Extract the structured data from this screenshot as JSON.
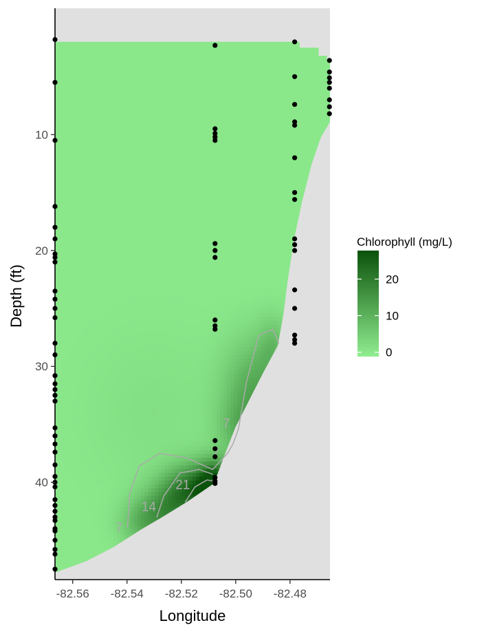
{
  "chart_data": {
    "type": "heatmap",
    "xlabel": "Longitude",
    "ylabel": "Depth (ft)",
    "x_ticks": [
      "-82.56",
      "-82.54",
      "-82.52",
      "-82.50",
      "-82.48"
    ],
    "x_tick_values": [
      -82.56,
      -82.54,
      -82.52,
      -82.5,
      -82.48
    ],
    "y_ticks": [
      "10",
      "20",
      "30",
      "40"
    ],
    "y_tick_values": [
      10,
      20,
      30,
      40
    ],
    "xlim": [
      -82.5665,
      -82.4653
    ],
    "ylim": [
      48.4,
      -0.9
    ],
    "y_reversed": true,
    "grid": false,
    "legend": {
      "title": "Chlorophyll (mg/L)",
      "position": "right",
      "labels": [
        "20",
        "10",
        "0"
      ],
      "label_values": [
        20,
        10,
        0
      ],
      "range": [
        -1.2,
        27.8
      ],
      "color_low": "#90ee90",
      "color_high": "#0b520b"
    },
    "background_color": "#e0e0e0",
    "contour_color": "#aaaaaa",
    "point_color": "#000000",
    "bottom_profile": [
      {
        "x": -82.5665,
        "y": 47.8
      },
      {
        "x": -82.555,
        "y": 46.8
      },
      {
        "x": -82.545,
        "y": 45.6
      },
      {
        "x": -82.535,
        "y": 44.1
      },
      {
        "x": -82.527,
        "y": 43.0
      },
      {
        "x": -82.518,
        "y": 41.7
      },
      {
        "x": -82.508,
        "y": 40.1
      },
      {
        "x": -82.504,
        "y": 37.6
      },
      {
        "x": -82.5,
        "y": 35.2
      },
      {
        "x": -82.495,
        "y": 32.9
      },
      {
        "x": -82.49,
        "y": 30.6
      },
      {
        "x": -82.4845,
        "y": 28.2
      },
      {
        "x": -82.4825,
        "y": 25.6
      },
      {
        "x": -82.4808,
        "y": 22.5
      },
      {
        "x": -82.4785,
        "y": 19.0
      },
      {
        "x": -82.4755,
        "y": 15.7
      },
      {
        "x": -82.472,
        "y": 12.5
      },
      {
        "x": -82.4686,
        "y": 10.2
      },
      {
        "x": -82.4653,
        "y": 8.9
      }
    ],
    "top_edge": [
      {
        "x": -82.5665,
        "y": 2.0
      },
      {
        "x": -82.4765,
        "y": 2.0
      },
      {
        "x": -82.4765,
        "y": 2.5
      },
      {
        "x": -82.4695,
        "y": 2.5
      },
      {
        "x": -82.4695,
        "y": 3.2
      },
      {
        "x": -82.4665,
        "y": 3.2
      },
      {
        "x": -82.4665,
        "y": 3.7
      },
      {
        "x": -82.4653,
        "y": 3.7
      }
    ],
    "hotspots": [
      {
        "x": -82.5075,
        "y": 40.2,
        "value": 26,
        "sx": 0.0045,
        "sy": 1.4
      },
      {
        "x": -82.516,
        "y": 40.6,
        "value": 19,
        "sx": 0.007,
        "sy": 1.5
      },
      {
        "x": -82.525,
        "y": 42.4,
        "value": 13,
        "sx": 0.007,
        "sy": 1.6
      },
      {
        "x": -82.534,
        "y": 43.6,
        "value": 8,
        "sx": 0.006,
        "sy": 1.4
      },
      {
        "x": -82.493,
        "y": 32.5,
        "value": 12,
        "sx": 0.008,
        "sy": 3.2
      },
      {
        "x": -82.486,
        "y": 28.3,
        "value": 6,
        "sx": 0.004,
        "sy": 1.8
      },
      {
        "x": -82.498,
        "y": 35.5,
        "value": 6,
        "sx": 0.006,
        "sy": 1.6
      },
      {
        "x": -82.53,
        "y": 34.0,
        "value": 1.5,
        "sx": 0.018,
        "sy": 5.0
      }
    ],
    "contours": [
      {
        "level": 7,
        "points": [
          {
            "x": -82.5398,
            "y": 43.9
          },
          {
            "x": -82.539,
            "y": 41.0
          },
          {
            "x": -82.5355,
            "y": 38.6
          },
          {
            "x": -82.528,
            "y": 37.5
          },
          {
            "x": -82.518,
            "y": 37.9
          },
          {
            "x": -82.5085,
            "y": 38.9
          },
          {
            "x": -82.503,
            "y": 37.5
          },
          {
            "x": -82.501,
            "y": 36.7
          },
          {
            "x": -82.499,
            "y": 35.4
          },
          {
            "x": -82.496,
            "y": 31.3
          },
          {
            "x": -82.4915,
            "y": 27.3
          },
          {
            "x": -82.4862,
            "y": 26.8
          },
          {
            "x": -82.4842,
            "y": 28.0
          }
        ]
      },
      {
        "level": 14,
        "points": [
          {
            "x": -82.529,
            "y": 43.0
          },
          {
            "x": -82.5265,
            "y": 41.2
          },
          {
            "x": -82.5205,
            "y": 39.2
          },
          {
            "x": -82.5135,
            "y": 38.9
          },
          {
            "x": -82.5085,
            "y": 39.3
          }
        ]
      },
      {
        "level": 21,
        "points": [
          {
            "x": -82.5185,
            "y": 41.7
          },
          {
            "x": -82.515,
            "y": 40.4
          },
          {
            "x": -82.5105,
            "y": 39.8
          },
          {
            "x": -82.5082,
            "y": 39.9
          }
        ]
      }
    ],
    "contour_labels": [
      {
        "text": "7",
        "x": -82.543,
        "y": 44.0
      },
      {
        "text": "7",
        "x": -82.5075,
        "y": 37.6
      },
      {
        "text": "7",
        "x": -82.5035,
        "y": 35.0
      },
      {
        "text": "14",
        "x": -82.532,
        "y": 42.2
      },
      {
        "text": "21",
        "x": -82.5195,
        "y": 40.3
      }
    ],
    "stations": [
      {
        "x": -82.5665,
        "depths": [
          1.8,
          5.5,
          10.5,
          16.2,
          18.0,
          19.0,
          20.3,
          20.6,
          21.0,
          23.5,
          24.2,
          25.0,
          25.8,
          28.0,
          29.0,
          30.8,
          31.5,
          32.0,
          32.5,
          33.0,
          35.3,
          36.0,
          36.7,
          37.4,
          38.5,
          39.5,
          40.0,
          40.4,
          41.5,
          42.0,
          42.5,
          43.0,
          43.3,
          44.0,
          44.2,
          45.0,
          45.8,
          46.2,
          47.5
        ]
      },
      {
        "x": -82.5076,
        "depths": [
          2.3,
          9.5,
          9.9,
          10.2,
          10.5,
          19.4,
          20.0,
          20.6,
          26.0,
          26.5,
          26.8,
          36.4,
          37.1,
          37.8,
          39.6,
          39.9,
          40.1
        ]
      },
      {
        "x": -82.4783,
        "depths": [
          2.0,
          5.0,
          7.4,
          8.9,
          9.2,
          12.0,
          15.0,
          15.6,
          19.0,
          19.5,
          20.0,
          23.4,
          25.0,
          27.3,
          27.7,
          28.0
        ]
      },
      {
        "x": -82.4655,
        "depths": [
          3.6,
          4.6,
          5.1,
          5.5,
          6.0,
          7.0,
          7.6,
          8.2
        ]
      }
    ]
  }
}
